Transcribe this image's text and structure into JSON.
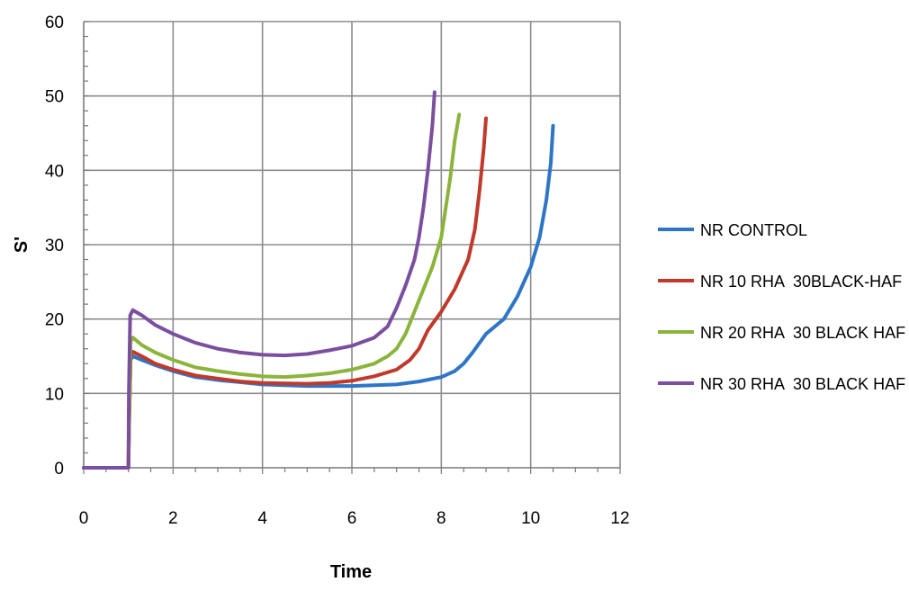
{
  "chart_data": {
    "type": "line",
    "title": "",
    "xlabel": "Time",
    "ylabel": "S'",
    "xlim": [
      0,
      12
    ],
    "ylim": [
      0,
      60
    ],
    "xticks": [
      0,
      2,
      4,
      6,
      8,
      10,
      12
    ],
    "yticks": [
      0,
      10,
      20,
      30,
      40,
      50,
      60
    ],
    "grid": true,
    "legend_position": "right",
    "series": [
      {
        "name": "NR CONTROL",
        "color": "#2E75C8",
        "points": [
          [
            0,
            0
          ],
          [
            1,
            0
          ],
          [
            1.02,
            7
          ],
          [
            1.05,
            14.5
          ],
          [
            1.1,
            15
          ],
          [
            1.3,
            14.5
          ],
          [
            1.6,
            13.8
          ],
          [
            2,
            13
          ],
          [
            2.5,
            12.2
          ],
          [
            3,
            11.8
          ],
          [
            3.5,
            11.5
          ],
          [
            4,
            11.2
          ],
          [
            5,
            11
          ],
          [
            6,
            11
          ],
          [
            7,
            11.2
          ],
          [
            7.5,
            11.6
          ],
          [
            8,
            12.2
          ],
          [
            8.3,
            13
          ],
          [
            8.5,
            14
          ],
          [
            8.7,
            15.5
          ],
          [
            9,
            18
          ],
          [
            9.4,
            20
          ],
          [
            9.7,
            23
          ],
          [
            10,
            27
          ],
          [
            10.2,
            31
          ],
          [
            10.35,
            36
          ],
          [
            10.45,
            41
          ],
          [
            10.5,
            46
          ]
        ]
      },
      {
        "name": "NR 10 RHA  30BLACK-HAF",
        "color": "#C0392B",
        "points": [
          [
            0,
            0
          ],
          [
            1,
            0
          ],
          [
            1.02,
            7
          ],
          [
            1.05,
            15
          ],
          [
            1.1,
            15.6
          ],
          [
            1.3,
            15
          ],
          [
            1.6,
            14
          ],
          [
            2,
            13.2
          ],
          [
            2.5,
            12.4
          ],
          [
            3,
            12
          ],
          [
            3.5,
            11.6
          ],
          [
            4,
            11.4
          ],
          [
            5,
            11.3
          ],
          [
            5.5,
            11.4
          ],
          [
            6,
            11.7
          ],
          [
            6.5,
            12.3
          ],
          [
            7,
            13.2
          ],
          [
            7.3,
            14.5
          ],
          [
            7.5,
            16
          ],
          [
            7.7,
            18.5
          ],
          [
            8,
            21
          ],
          [
            8.3,
            24
          ],
          [
            8.6,
            28
          ],
          [
            8.75,
            32
          ],
          [
            8.85,
            37
          ],
          [
            8.95,
            43
          ],
          [
            9,
            47
          ]
        ]
      },
      {
        "name": "NR 20 RHA  30 BLACK HAF",
        "color": "#8CB43C",
        "points": [
          [
            0,
            0
          ],
          [
            1,
            0
          ],
          [
            1.02,
            8
          ],
          [
            1.05,
            17
          ],
          [
            1.1,
            17.5
          ],
          [
            1.3,
            16.5
          ],
          [
            1.6,
            15.5
          ],
          [
            2,
            14.5
          ],
          [
            2.5,
            13.5
          ],
          [
            3,
            13
          ],
          [
            3.5,
            12.6
          ],
          [
            4,
            12.3
          ],
          [
            4.5,
            12.2
          ],
          [
            5,
            12.4
          ],
          [
            5.5,
            12.7
          ],
          [
            6,
            13.2
          ],
          [
            6.5,
            14
          ],
          [
            6.8,
            15
          ],
          [
            7,
            16
          ],
          [
            7.2,
            18
          ],
          [
            7.4,
            21
          ],
          [
            7.6,
            24
          ],
          [
            7.8,
            27
          ],
          [
            8,
            31
          ],
          [
            8.1,
            35
          ],
          [
            8.2,
            39
          ],
          [
            8.3,
            44
          ],
          [
            8.4,
            47.5
          ]
        ]
      },
      {
        "name": "NR 30 RHA  30 BLACK HAF",
        "color": "#7B4FA0",
        "points": [
          [
            0,
            0
          ],
          [
            1,
            0
          ],
          [
            1.01,
            10
          ],
          [
            1.04,
            20.5
          ],
          [
            1.1,
            21.2
          ],
          [
            1.3,
            20.5
          ],
          [
            1.6,
            19.2
          ],
          [
            2,
            18
          ],
          [
            2.5,
            16.8
          ],
          [
            3,
            16
          ],
          [
            3.5,
            15.5
          ],
          [
            4,
            15.2
          ],
          [
            4.5,
            15.1
          ],
          [
            5,
            15.3
          ],
          [
            5.5,
            15.8
          ],
          [
            6,
            16.4
          ],
          [
            6.5,
            17.5
          ],
          [
            6.8,
            19
          ],
          [
            7,
            21.5
          ],
          [
            7.2,
            24.5
          ],
          [
            7.4,
            28
          ],
          [
            7.5,
            31
          ],
          [
            7.6,
            35
          ],
          [
            7.7,
            40
          ],
          [
            7.8,
            46
          ],
          [
            7.85,
            50.5
          ]
        ]
      }
    ]
  }
}
